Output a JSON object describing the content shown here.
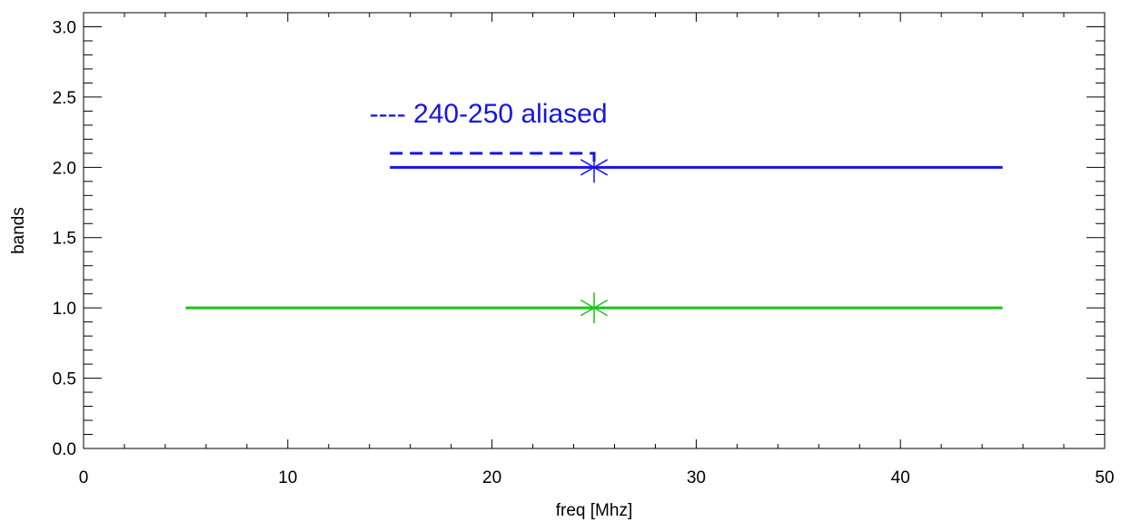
{
  "chart_data": {
    "type": "line",
    "title": "",
    "xlabel": "freq [Mhz]",
    "ylabel": "bands",
    "xlim": [
      0,
      50
    ],
    "ylim": [
      0,
      3.1
    ],
    "x_ticks": [
      0,
      10,
      20,
      30,
      40,
      50
    ],
    "x_tick_labels": [
      "0",
      "10",
      "20",
      "30",
      "40",
      "50"
    ],
    "y_ticks": [
      0,
      0.5,
      1,
      1.5,
      2,
      2.5,
      3
    ],
    "y_tick_labels": [
      "0.0",
      "0.5",
      "1.0",
      "1.5",
      "2.0",
      "2.5",
      "3.0"
    ],
    "grid": false,
    "series": [
      {
        "color": "#1515e6",
        "style": "solid",
        "x": [
          15,
          45
        ],
        "y": [
          2.0,
          2.0
        ],
        "marker": {
          "x": 25,
          "y": 2.0,
          "symbol": "asterisk"
        }
      },
      {
        "color": "#1515e6",
        "style": "dashed",
        "x": [
          15,
          25,
          25
        ],
        "y": [
          2.1,
          2.1,
          2.0
        ]
      },
      {
        "color": "#19c319",
        "style": "solid",
        "x": [
          5,
          45
        ],
        "y": [
          1.0,
          1.0
        ],
        "marker": {
          "x": 25,
          "y": 1.0,
          "symbol": "asterisk"
        }
      }
    ],
    "annotations": [
      {
        "text": "---- 240-250 aliased",
        "x": 14,
        "y": 2.32,
        "color": "#1515e6"
      }
    ]
  }
}
